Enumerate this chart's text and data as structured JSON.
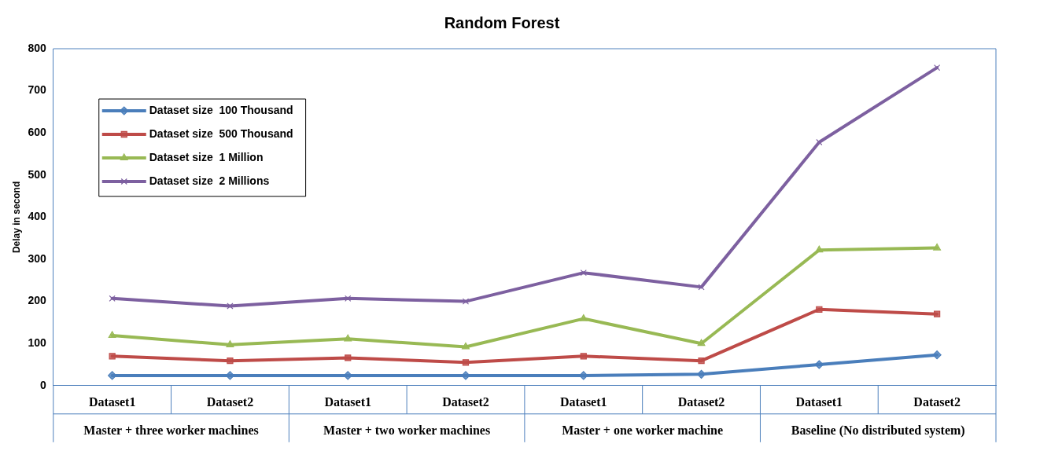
{
  "chart_data": {
    "type": "line",
    "title": "Random Forest",
    "ylabel": "Delay in second",
    "categories": [
      "Dataset1",
      "Dataset2",
      "Dataset1",
      "Dataset2",
      "Dataset1",
      "Dataset2",
      "Dataset1",
      "Dataset2"
    ],
    "annotations": [
      "Master + three worker machines",
      "Master + two worker machines",
      "Master + one worker machine",
      "Baseline (No distributed system)"
    ],
    "series": [
      {
        "name": "Dataset size  100 Thousand",
        "color": "#4a7ebb",
        "marker": "diamond",
        "values": [
          24,
          24,
          24,
          24,
          24,
          27,
          50,
          73
        ]
      },
      {
        "name": "Dataset size  500 Thousand",
        "color": "#be4b48",
        "marker": "square",
        "values": [
          70,
          59,
          66,
          55,
          70,
          59,
          181,
          170
        ]
      },
      {
        "name": "Dataset size  1 Million",
        "color": "#98b954",
        "marker": "triangle",
        "values": [
          119,
          97,
          111,
          92,
          159,
          100,
          322,
          327
        ]
      },
      {
        "name": "Dataset size  2 Millions",
        "color": "#7d60a0",
        "marker": "cross",
        "values": [
          207,
          189,
          207,
          200,
          268,
          234,
          578,
          755
        ]
      }
    ],
    "ylim": [
      0,
      800
    ],
    "yticks": [
      0,
      100,
      200,
      300,
      400,
      500,
      600,
      700,
      800
    ],
    "grid": false,
    "legend": "top left",
    "line_style": "solid"
  }
}
